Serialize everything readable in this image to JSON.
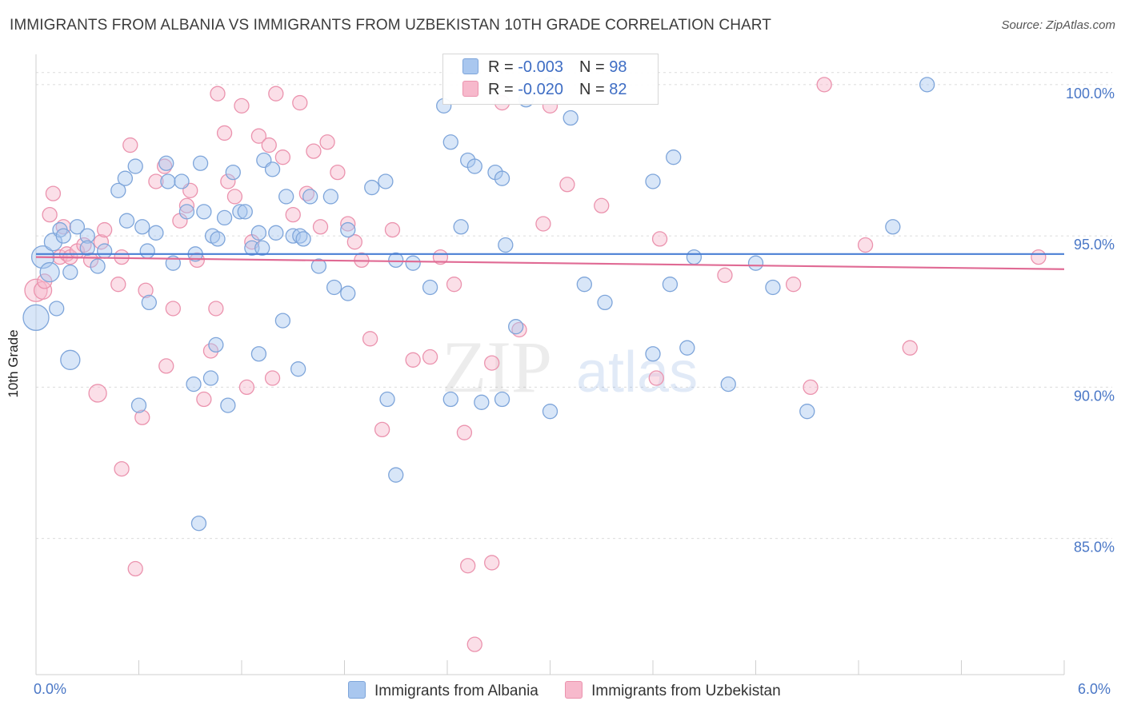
{
  "title": "IMMIGRANTS FROM ALBANIA VS IMMIGRANTS FROM UZBEKISTAN 10TH GRADE CORRELATION CHART",
  "source": "Source: ZipAtlas.com",
  "watermark": {
    "zip": "ZIP",
    "atlas": "atlas"
  },
  "legend": {
    "r_label": "R =",
    "n_label": "N =",
    "rows": [
      {
        "r": "-0.003",
        "n": "98",
        "color": "#a9c7ef",
        "stroke": "#7ea5da"
      },
      {
        "r": "-0.020",
        "n": "82",
        "color": "#f7b9cc",
        "stroke": "#eb93ae"
      }
    ]
  },
  "bottom_legend": [
    "Immigrants from Albania",
    "Immigrants from Uzbekistan"
  ],
  "chart_data": {
    "type": "scatter",
    "title": "IMMIGRANTS FROM ALBANIA VS IMMIGRANTS FROM UZBEKISTAN 10TH GRADE CORRELATION CHART",
    "xlabel": "",
    "ylabel": "10th Grade",
    "xlim": [
      0,
      6
    ],
    "ylim": [
      80.5,
      101
    ],
    "x_tick_labels": [
      "0.0%",
      "6.0%"
    ],
    "y_ticks": [
      85,
      90,
      95,
      100
    ],
    "y_tick_labels": [
      "85.0%",
      "90.0%",
      "95.0%",
      "100.0%"
    ],
    "grid": true,
    "legend_position": "top-center",
    "colors": {
      "albania": "#4a7fd4",
      "uzbekistan": "#e06a94",
      "albania_fill": "#a9c7ef",
      "uzbekistan_fill": "#f7b9cc"
    },
    "series": [
      {
        "name": "Immigrants from Albania",
        "r": -0.003,
        "n": 98,
        "trend": {
          "x": [
            0,
            6
          ],
          "y": [
            94.4,
            94.4
          ]
        },
        "points": [
          [
            0.0,
            92.3,
            16
          ],
          [
            0.04,
            94.3,
            14
          ],
          [
            0.08,
            93.8,
            12
          ],
          [
            0.1,
            94.8,
            11
          ],
          [
            0.12,
            92.6,
            9
          ],
          [
            0.14,
            95.2,
            9
          ],
          [
            0.2,
            93.8,
            9
          ],
          [
            0.16,
            95.0,
            9
          ],
          [
            0.24,
            95.3,
            9
          ],
          [
            0.3,
            95.0,
            9
          ],
          [
            0.3,
            94.6,
            9
          ],
          [
            0.36,
            94.0,
            9
          ],
          [
            0.4,
            94.5,
            9
          ],
          [
            0.48,
            96.5,
            9
          ],
          [
            0.52,
            96.9,
            9
          ],
          [
            0.53,
            95.5,
            9
          ],
          [
            0.58,
            97.3,
            9
          ],
          [
            0.62,
            95.3,
            9
          ],
          [
            0.66,
            92.8,
            9
          ],
          [
            0.7,
            95.1,
            9
          ],
          [
            0.65,
            94.5,
            9
          ],
          [
            0.76,
            97.4,
            9
          ],
          [
            0.77,
            96.8,
            9
          ],
          [
            0.8,
            94.1,
            9
          ],
          [
            0.85,
            96.8,
            9
          ],
          [
            0.88,
            95.8,
            9
          ],
          [
            0.93,
            94.4,
            9
          ],
          [
            0.96,
            97.4,
            9
          ],
          [
            0.98,
            95.8,
            9
          ],
          [
            1.03,
            95.0,
            9
          ],
          [
            1.06,
            94.9,
            9
          ],
          [
            1.1,
            95.6,
            9
          ],
          [
            1.15,
            97.1,
            9
          ],
          [
            1.19,
            95.8,
            9
          ],
          [
            1.22,
            95.8,
            9
          ],
          [
            1.26,
            94.6,
            9
          ],
          [
            1.3,
            95.1,
            9
          ],
          [
            1.33,
            97.5,
            9
          ],
          [
            1.38,
            97.2,
            9
          ],
          [
            1.32,
            94.6,
            9
          ],
          [
            1.4,
            95.1,
            9
          ],
          [
            1.46,
            96.3,
            9
          ],
          [
            1.5,
            95.0,
            9
          ],
          [
            1.54,
            95.0,
            9
          ],
          [
            1.56,
            94.9,
            9
          ],
          [
            1.6,
            96.3,
            9
          ],
          [
            1.65,
            94.0,
            9
          ],
          [
            1.74,
            93.3,
            9
          ],
          [
            1.82,
            93.1,
            9
          ],
          [
            1.72,
            96.3,
            9
          ],
          [
            1.82,
            95.2,
            9
          ],
          [
            1.96,
            96.6,
            9
          ],
          [
            2.04,
            96.8,
            9
          ],
          [
            2.1,
            94.2,
            9
          ],
          [
            2.2,
            94.1,
            9
          ],
          [
            2.3,
            93.3,
            9
          ],
          [
            2.38,
            99.3,
            9
          ],
          [
            2.42,
            98.1,
            9
          ],
          [
            2.48,
            95.3,
            9
          ],
          [
            2.52,
            97.5,
            9
          ],
          [
            2.56,
            97.3,
            9
          ],
          [
            2.68,
            97.1,
            9
          ],
          [
            2.72,
            96.9,
            9
          ],
          [
            2.74,
            94.7,
            9
          ],
          [
            2.8,
            92.0,
            9
          ],
          [
            2.86,
            99.5,
            9
          ],
          [
            3.0,
            100.0,
            9
          ],
          [
            3.2,
            93.4,
            9
          ],
          [
            3.32,
            92.8,
            9
          ],
          [
            3.6,
            96.8,
            9
          ],
          [
            3.12,
            98.9,
            9
          ],
          [
            3.72,
            97.6,
            9
          ],
          [
            3.7,
            93.4,
            9
          ],
          [
            3.84,
            94.3,
            9
          ],
          [
            4.2,
            94.1,
            9
          ],
          [
            4.3,
            93.3,
            9
          ],
          [
            5.0,
            95.3,
            9
          ],
          [
            5.2,
            100.0,
            9
          ],
          [
            0.2,
            90.9,
            12
          ],
          [
            1.05,
            91.4,
            9
          ],
          [
            1.3,
            91.1,
            9
          ],
          [
            1.44,
            92.2,
            9
          ],
          [
            1.53,
            90.6,
            9
          ],
          [
            0.6,
            89.4,
            9
          ],
          [
            0.92,
            90.1,
            9
          ],
          [
            1.02,
            90.3,
            9
          ],
          [
            1.12,
            89.4,
            9
          ],
          [
            2.05,
            89.6,
            9
          ],
          [
            2.42,
            89.6,
            9
          ],
          [
            2.6,
            89.5,
            9
          ],
          [
            2.72,
            89.6,
            9
          ],
          [
            3.0,
            89.2,
            9
          ],
          [
            3.6,
            91.1,
            9
          ],
          [
            3.8,
            91.3,
            9
          ],
          [
            4.04,
            90.1,
            9
          ],
          [
            4.5,
            89.2,
            9
          ],
          [
            2.1,
            87.1,
            9
          ],
          [
            0.95,
            85.5,
            9
          ]
        ]
      },
      {
        "name": "Immigrants from Uzbekistan",
        "r": -0.02,
        "n": 82,
        "trend": {
          "x": [
            0,
            6
          ],
          "y": [
            94.3,
            93.9
          ]
        },
        "points": [
          [
            0.0,
            93.2,
            14
          ],
          [
            0.04,
            93.2,
            11
          ],
          [
            0.08,
            95.7,
            9
          ],
          [
            0.1,
            96.4,
            9
          ],
          [
            0.14,
            94.3,
            9
          ],
          [
            0.18,
            94.4,
            9
          ],
          [
            0.2,
            94.3,
            9
          ],
          [
            0.24,
            94.5,
            9
          ],
          [
            0.28,
            94.7,
            9
          ],
          [
            0.32,
            94.2,
            9
          ],
          [
            0.38,
            94.8,
            9
          ],
          [
            0.4,
            95.2,
            9
          ],
          [
            0.48,
            93.4,
            9
          ],
          [
            0.5,
            94.3,
            9
          ],
          [
            0.55,
            98.0,
            9
          ],
          [
            0.62,
            89.0,
            9
          ],
          [
            0.64,
            93.2,
            9
          ],
          [
            0.7,
            96.8,
            9
          ],
          [
            0.75,
            97.3,
            9
          ],
          [
            0.76,
            90.7,
            9
          ],
          [
            0.8,
            92.6,
            9
          ],
          [
            0.84,
            95.5,
            9
          ],
          [
            0.88,
            96.0,
            9
          ],
          [
            0.9,
            96.5,
            9
          ],
          [
            0.94,
            94.2,
            9
          ],
          [
            0.98,
            89.6,
            9
          ],
          [
            1.02,
            91.2,
            9
          ],
          [
            1.05,
            92.6,
            9
          ],
          [
            1.06,
            99.7,
            9
          ],
          [
            1.1,
            98.4,
            9
          ],
          [
            1.12,
            96.8,
            9
          ],
          [
            1.16,
            96.3,
            9
          ],
          [
            1.2,
            99.3,
            9
          ],
          [
            1.23,
            90.0,
            9
          ],
          [
            1.26,
            94.8,
            9
          ],
          [
            1.3,
            98.3,
            9
          ],
          [
            1.36,
            98.0,
            9
          ],
          [
            1.38,
            90.3,
            9
          ],
          [
            1.4,
            99.7,
            9
          ],
          [
            1.44,
            97.6,
            9
          ],
          [
            1.5,
            95.7,
            9
          ],
          [
            1.54,
            99.4,
            9
          ],
          [
            1.58,
            96.4,
            9
          ],
          [
            1.62,
            97.8,
            9
          ],
          [
            1.66,
            95.3,
            9
          ],
          [
            1.7,
            98.1,
            9
          ],
          [
            1.76,
            97.1,
            9
          ],
          [
            1.82,
            95.4,
            9
          ],
          [
            1.86,
            94.8,
            9
          ],
          [
            1.9,
            94.2,
            9
          ],
          [
            1.95,
            91.6,
            9
          ],
          [
            2.02,
            88.6,
            9
          ],
          [
            2.08,
            95.2,
            9
          ],
          [
            2.2,
            90.9,
            9
          ],
          [
            2.3,
            91.0,
            9
          ],
          [
            2.36,
            94.3,
            9
          ],
          [
            2.44,
            93.4,
            9
          ],
          [
            2.5,
            88.5,
            9
          ],
          [
            2.66,
            90.8,
            9
          ],
          [
            2.72,
            99.4,
            9
          ],
          [
            2.82,
            91.9,
            9
          ],
          [
            2.96,
            95.4,
            9
          ],
          [
            3.0,
            99.3,
            9
          ],
          [
            3.1,
            96.7,
            9
          ],
          [
            3.3,
            96.0,
            9
          ],
          [
            3.62,
            90.3,
            9
          ],
          [
            3.64,
            94.9,
            9
          ],
          [
            4.02,
            93.7,
            9
          ],
          [
            4.42,
            93.4,
            9
          ],
          [
            4.52,
            90.0,
            9
          ],
          [
            4.6,
            100.0,
            9
          ],
          [
            4.84,
            94.7,
            9
          ],
          [
            5.1,
            91.3,
            9
          ],
          [
            5.85,
            94.3,
            9
          ],
          [
            0.36,
            89.8,
            11
          ],
          [
            0.5,
            87.3,
            9
          ],
          [
            0.58,
            84.0,
            9
          ],
          [
            2.52,
            84.1,
            9
          ],
          [
            2.56,
            81.5,
            9
          ],
          [
            2.66,
            84.2,
            9
          ],
          [
            0.05,
            93.5,
            9
          ],
          [
            0.16,
            95.3,
            9
          ]
        ]
      }
    ]
  }
}
